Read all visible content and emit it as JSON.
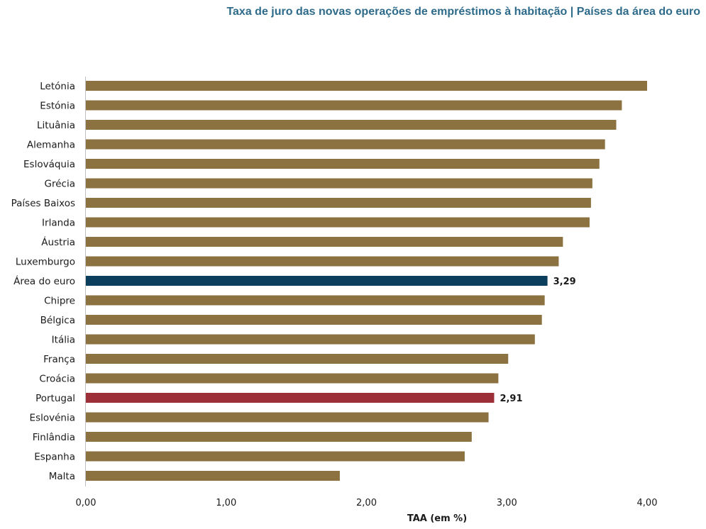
{
  "colors": {
    "title": "#2e6b8a",
    "bar_default": "#8c7240",
    "bar_euro_area": "#0b3d5c",
    "bar_portugal": "#9c2f37",
    "axis": "#bfbfbf"
  },
  "chart_data": {
    "type": "bar",
    "orientation": "horizontal",
    "title": "Taxa de juro das novas operações de empréstimos à habitação | Países da área do euro",
    "xlabel": "TAA (em %)",
    "ylabel": "",
    "xlim": [
      0,
      4
    ],
    "xticks": [
      {
        "value": 0,
        "label": "0,00"
      },
      {
        "value": 1,
        "label": "1,00"
      },
      {
        "value": 2,
        "label": "2,00"
      },
      {
        "value": 3,
        "label": "3,00"
      },
      {
        "value": 4,
        "label": "4,00"
      }
    ],
    "grid": false,
    "categories": [
      "Letónia",
      "Estónia",
      "Lituânia",
      "Alemanha",
      "Eslováquia",
      "Grécia",
      "Países Baixos",
      "Irlanda",
      "Áustria",
      "Luxemburgo",
      "Área do euro",
      "Chipre",
      "Bélgica",
      "Itália",
      "França",
      "Croácia",
      "Portugal",
      "Eslovénia",
      "Finlândia",
      "Espanha",
      "Malta"
    ],
    "values": [
      4.0,
      3.82,
      3.78,
      3.7,
      3.66,
      3.61,
      3.6,
      3.59,
      3.4,
      3.37,
      3.29,
      3.27,
      3.25,
      3.2,
      3.01,
      2.94,
      2.91,
      2.87,
      2.75,
      2.7,
      1.81
    ],
    "highlights": [
      {
        "category": "Área do euro",
        "label": "3,29",
        "color": "#0b3d5c"
      },
      {
        "category": "Portugal",
        "label": "2,91",
        "color": "#9c2f37"
      }
    ]
  }
}
